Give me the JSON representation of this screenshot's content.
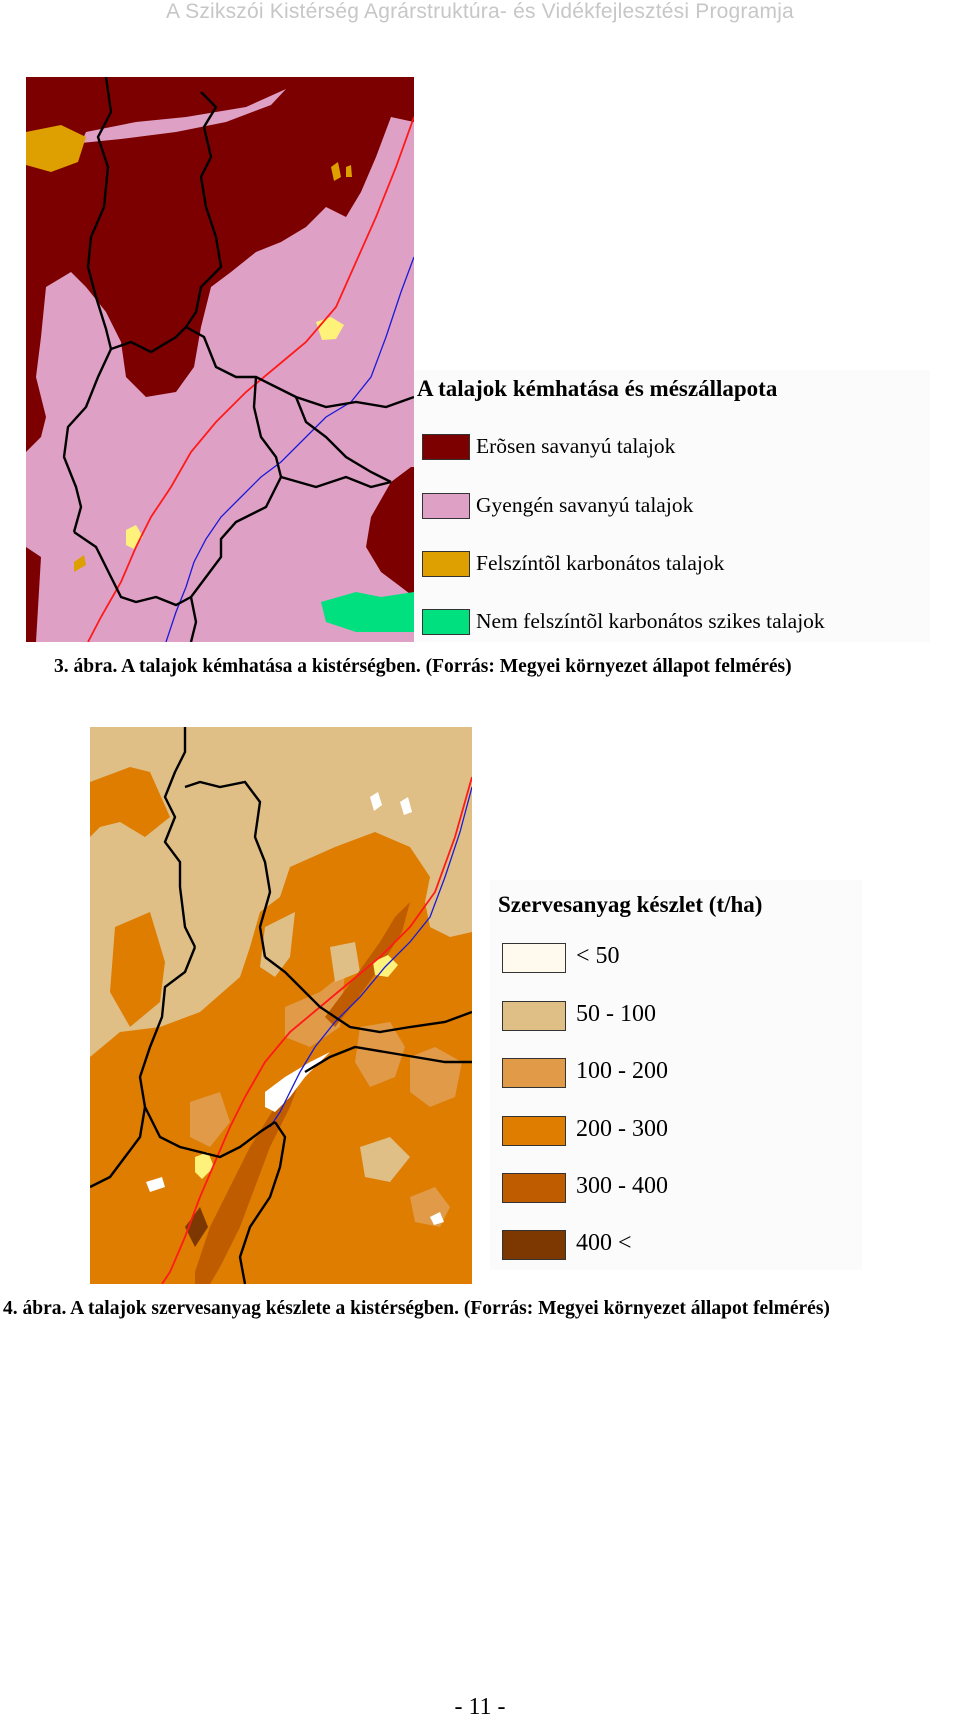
{
  "header": {
    "text": "A Szikszói Kistérség Agrárstruktúra- és Vidékfejlesztési Programja"
  },
  "figure3": {
    "legend_title": "A talajok kémhatása és mészállapota",
    "legend_items": [
      {
        "label": "Erõsen savanyú talajok",
        "color": "#7c0000"
      },
      {
        "label": "Gyengén savanyú talajok",
        "color": "#dea1c5"
      },
      {
        "label": "Felszíntõl karbonátos talajok",
        "color": "#dea000"
      },
      {
        "label": "Nem felszíntõl karbonátos szikes talajok",
        "color": "#00e07e"
      }
    ],
    "caption": "3. ábra. A talajok kémhatása a kistérségben. (Forrás: Megyei környezet állapot felmérés)"
  },
  "figure4": {
    "legend_title": "Szervesanyag készlet (t/ha)",
    "legend_items": [
      {
        "label": "< 50",
        "color": "#fffaed"
      },
      {
        "label": "50 - 100",
        "color": "#e0bf87"
      },
      {
        "label": "100 - 200",
        "color": "#e09a48"
      },
      {
        "label": "200 - 300",
        "color": "#de7d00"
      },
      {
        "label": "300 - 400",
        "color": "#bf5c00"
      },
      {
        "label": "400 <",
        "color": "#7c3800"
      }
    ],
    "caption": "4. ábra. A talajok szervesanyag készlete a kistérségben. (Forrás: Megyei környezet állapot felmérés)"
  },
  "footer": {
    "page_number": "- 11 -"
  }
}
